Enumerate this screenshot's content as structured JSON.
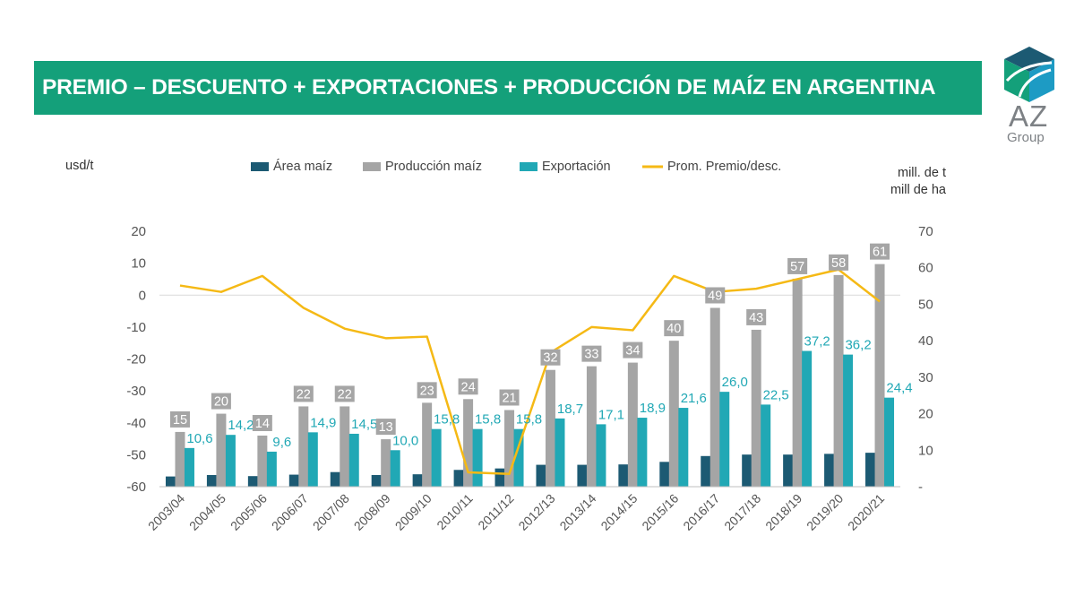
{
  "header": {
    "title": "PREMIO – DESCUENTO + EXPORTACIONES  + PRODUCCIÓN DE MAÍZ EN ARGENTINA"
  },
  "logo": {
    "text": "AZ",
    "subtext": "Group"
  },
  "colors": {
    "banner": "#14A07A",
    "area": "#1C5A73",
    "produccion": "#A5A5A5",
    "exportacion": "#21A8B5",
    "premio": "#F5B915",
    "prod_label_bg": "#A5A5A5"
  },
  "chart_data": {
    "type": "bar",
    "title": "PREMIO – DESCUENTO + EXPORTACIONES  + PRODUCCIÓN DE MAÍZ EN ARGENTINA",
    "categories": [
      "2003/04",
      "2004/05",
      "2005/06",
      "2006/07",
      "2007/08",
      "2008/09",
      "2009/10",
      "2010/11",
      "2011/12",
      "2012/13",
      "2013/14",
      "2014/15",
      "2015/16",
      "2016/17",
      "2017/18",
      "2018/19",
      "2019/20",
      "2020/21"
    ],
    "left_axis": {
      "label": "usd/t",
      "range": [
        -60,
        20
      ],
      "ticks": [
        "20",
        "10",
        "0",
        "-10",
        "-20",
        "-30",
        "-40",
        "-50",
        "-60"
      ]
    },
    "right_axis": {
      "label_line1": "mill. de t",
      "label_line2": "mill de ha",
      "range": [
        0,
        70
      ],
      "ticks": [
        "70",
        "60",
        "50",
        "40",
        "30",
        "20",
        "10",
        "-"
      ]
    },
    "legend": [
      "Área maíz",
      "Producción maíz",
      "Exportación",
      "Prom. Premio/desc."
    ],
    "series": [
      {
        "name": "Área maíz",
        "type": "bar",
        "axis": "right",
        "values": [
          2.8,
          3.2,
          2.9,
          3.3,
          4.0,
          3.2,
          3.4,
          4.6,
          5.0,
          6.0,
          6.0,
          6.1,
          6.8,
          8.4,
          8.8,
          8.8,
          9.0,
          9.3
        ]
      },
      {
        "name": "Producción maíz",
        "type": "bar",
        "axis": "right",
        "values": [
          15,
          20,
          14,
          22,
          22,
          13,
          23,
          24,
          21,
          32,
          33,
          34,
          40,
          49,
          43,
          57,
          58,
          61
        ],
        "labels": [
          "15",
          "20",
          "14",
          "22",
          "22",
          "13",
          "23",
          "24",
          "21",
          "32",
          "33",
          "34",
          "40",
          "49",
          "43",
          "57",
          "58",
          "61"
        ]
      },
      {
        "name": "Exportación",
        "type": "bar",
        "axis": "right",
        "values": [
          10.6,
          14.2,
          9.6,
          14.9,
          14.5,
          10.0,
          15.8,
          15.8,
          15.8,
          18.7,
          17.1,
          18.9,
          21.6,
          26.0,
          22.5,
          37.2,
          36.2,
          24.4
        ],
        "labels": [
          "10,6",
          "14,2",
          "9,6",
          "14,9",
          "14,5",
          "10,0",
          "15,8",
          "15,8",
          "15,8",
          "18,7",
          "17,1",
          "18,9",
          "21,6",
          "26,0",
          "22,5",
          "37,2",
          "36,2",
          "24,4"
        ]
      },
      {
        "name": "Prom. Premio/desc.",
        "type": "line",
        "axis": "left",
        "values": [
          3,
          1,
          6,
          -4,
          -10.5,
          -13.5,
          -13,
          -55.5,
          -56,
          -18,
          -10,
          -11,
          6,
          1,
          2,
          5,
          8,
          -2
        ]
      }
    ]
  }
}
